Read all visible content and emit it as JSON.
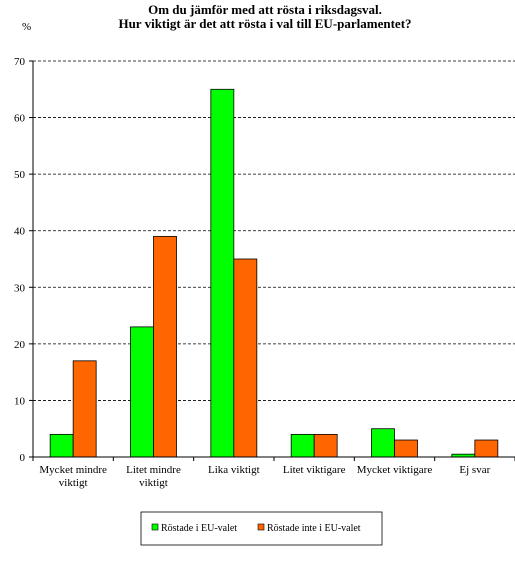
{
  "chart_data": {
    "type": "bar",
    "title_lines": [
      "Om du jämför med att rösta i riksdagsval.",
      "Hur viktigt är det att rösta i val till EU-parlamentet?"
    ],
    "ylabel": "%",
    "xlabel": "",
    "ylim": [
      0,
      70
    ],
    "y_ticks": [
      0,
      10,
      20,
      30,
      40,
      50,
      60,
      70
    ],
    "grid": true,
    "legend_position": "bottom",
    "categories": [
      [
        "Mycket mindre",
        "viktigt"
      ],
      [
        "Litet mindre",
        "viktigt"
      ],
      [
        "Lika viktigt"
      ],
      [
        "Litet viktigare"
      ],
      [
        "Mycket viktigare"
      ],
      [
        "Ej svar"
      ]
    ],
    "series": [
      {
        "name": "Röstade i EU-valet",
        "color": "#00ff00",
        "values": [
          4,
          23,
          65,
          4,
          5,
          0.5
        ]
      },
      {
        "name": "Röstade inte i EU-valet",
        "color": "#ff6600",
        "values": [
          17,
          39,
          35,
          4,
          3,
          3
        ]
      }
    ]
  }
}
